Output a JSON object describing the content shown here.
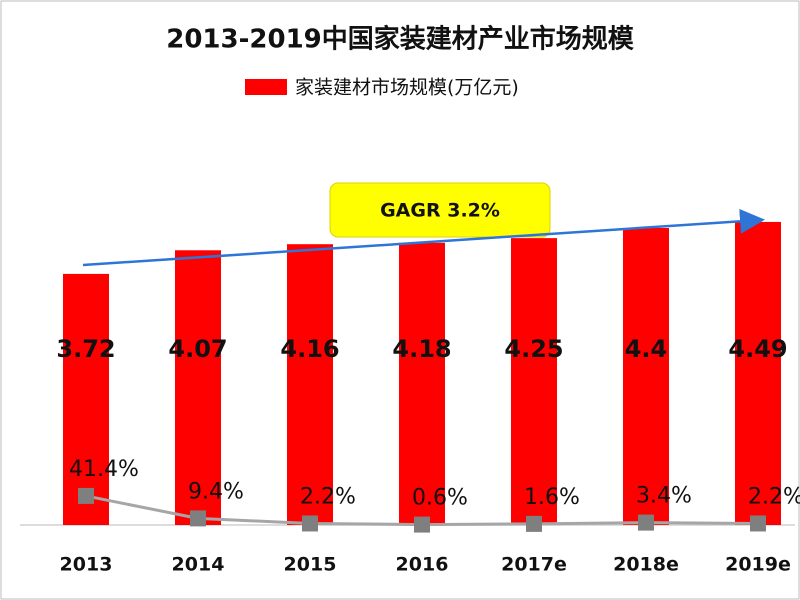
{
  "chart_data": {
    "type": "bar",
    "title": "2013-2019中国家装建材产业市场规模",
    "categories": [
      "2013",
      "2014",
      "2015",
      "2016",
      "2017e",
      "2018e",
      "2019e"
    ],
    "series": [
      {
        "name": "家装建材市场规模(万亿元)",
        "color": "#ff0000",
        "values": [
          3.72,
          4.07,
          4.16,
          4.18,
          4.25,
          4.4,
          4.49
        ]
      },
      {
        "type": "line",
        "axis": "y2",
        "color": "#a6a6a6",
        "marker_color": "#7f7f7f",
        "values": [
          41.4,
          9.4,
          2.2,
          0.6,
          1.6,
          3.4,
          2.2
        ],
        "value_labels": [
          "41.4%",
          "9.4%",
          "2.2%",
          "0.6%",
          "1.6%",
          "3.4%",
          "2.2%"
        ]
      }
    ],
    "ylim": [
      0,
      5.2
    ],
    "y2lim": [
      0,
      500
    ],
    "annotation": "GAGR 3.2%",
    "legend": "top"
  }
}
